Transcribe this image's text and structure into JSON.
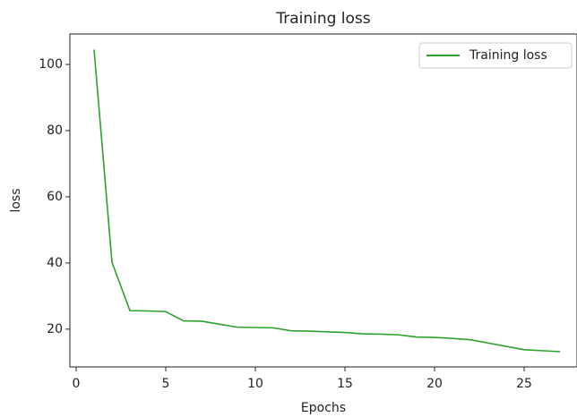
{
  "chart_data": {
    "type": "line",
    "title": "Training loss",
    "x_label": "Epochs",
    "y_label": "loss",
    "x": [
      1,
      2,
      3,
      4,
      5,
      6,
      7,
      8,
      9,
      10,
      11,
      12,
      13,
      14,
      15,
      16,
      17,
      18,
      19,
      20,
      21,
      22,
      23,
      24,
      25,
      26,
      27
    ],
    "series": [
      {
        "name": "Training loss",
        "color": "#2ca02c",
        "values": [
          104.5,
          40.2,
          25.6,
          25.5,
          25.3,
          22.5,
          22.4,
          21.5,
          20.6,
          20.5,
          20.4,
          19.5,
          19.4,
          19.2,
          19.0,
          18.6,
          18.5,
          18.3,
          17.6,
          17.5,
          17.2,
          16.8,
          15.8,
          14.8,
          13.8,
          13.5,
          13.2
        ]
      }
    ],
    "xlim": [
      -0.35,
      27.95
    ],
    "xticks": [
      0,
      5,
      10,
      15,
      20,
      25
    ],
    "ylim": [
      8.6,
      109.2
    ],
    "yticks": [
      20,
      40,
      60,
      80,
      100
    ],
    "legend": "upper right"
  }
}
